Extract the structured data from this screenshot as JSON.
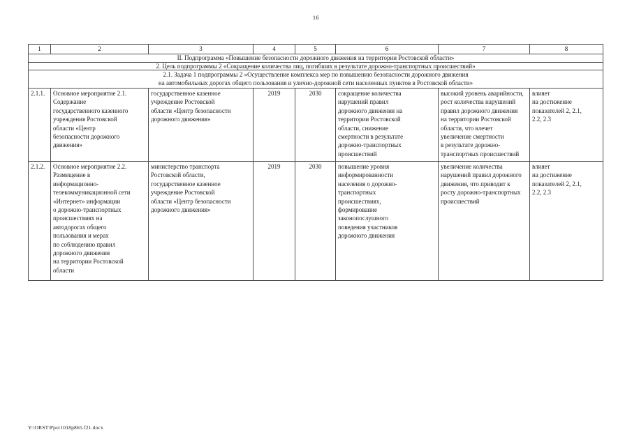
{
  "page": {
    "number": "16",
    "footer_path": "Y:\\ORST\\Ppo\\1018p865.f21.docx"
  },
  "table": {
    "column_numbers": [
      "1",
      "2",
      "3",
      "4",
      "5",
      "6",
      "7",
      "8"
    ],
    "sections": {
      "subprogram": "II. Подпрограмма «Повышение безопасности дорожного движения на территории Ростовской области»",
      "goal": "2. Цель подпрограммы 2 «Сокращение количества лиц, погибших в результате дорожно-транспортных происшествий»",
      "task": "2.1. Задача 1 подпрограммы 2 «Осуществление комплекса мер по повышению безопасности дорожного движения\nна автомобильных дорогах общего пользования и улично-дорожной сети населенных пунктов в Ростовской области»"
    },
    "rows": [
      {
        "num": "2.1.1.",
        "name": "Основное мероприятие 2.1.\nСодержание\nгосударственного казенного\nучреждения Ростовской\nобласти «Центр\nбезопасности дорожного\nдвижения»",
        "executor": "государственное казенное\nучреждение Ростовской\nобласти «Центр безопасности\nдорожного движения»",
        "year_start": "2019",
        "year_end": "2030",
        "expected_result": "сокращение количества\nнарушений правил\nдорожного движения на\nтерритории Ростовской\nобласти, снижение\nсмертности в результате\nдорожно-транспортных\nпроисшествий",
        "consequence": "высокий уровень аварийности,\nрост количества нарушений\nправил дорожного движения\nна территории Ростовской\nобласти, что влечет\nувеличение смертности\nв результате дорожно-\nтранспортных происшествий",
        "indicators": "влияет\nна достижение\nпоказателей 2, 2.1,\n2.2, 2.3"
      },
      {
        "num": "2.1.2.",
        "name": "Основное мероприятие 2.2.\nРазмещение в\nинформационно-\nтелекоммуникационной сети\n«Интернет» информации\nо дорожно-транспортных\nпроисшествиях на\nавтодорогах общего\nпользования и мерах\nпо соблюдению правил\nдорожного движения\nна территории Ростовской\nобласти",
        "executor": "министерство транспорта\nРостовской области,\nгосударственное казенное\nучреждение Ростовской\nобласти «Центр безопасности\nдорожного движения»",
        "year_start": "2019",
        "year_end": "2030",
        "expected_result": "повышение уровня\nинформированности\nнаселения о дорожно-\nтранспортных\nпроисшествиях,\nформирование\nзаконопослушного\nповедения участников\nдорожного движения",
        "consequence": "увеличение количества\nнарушений правил дорожного\nдвижения, что приводит к\nросту дорожно-транспортных\nпроисшествий",
        "indicators": "влияет\nна достижение\nпоказателей 2, 2.1,\n2.2, 2.3"
      }
    ]
  }
}
